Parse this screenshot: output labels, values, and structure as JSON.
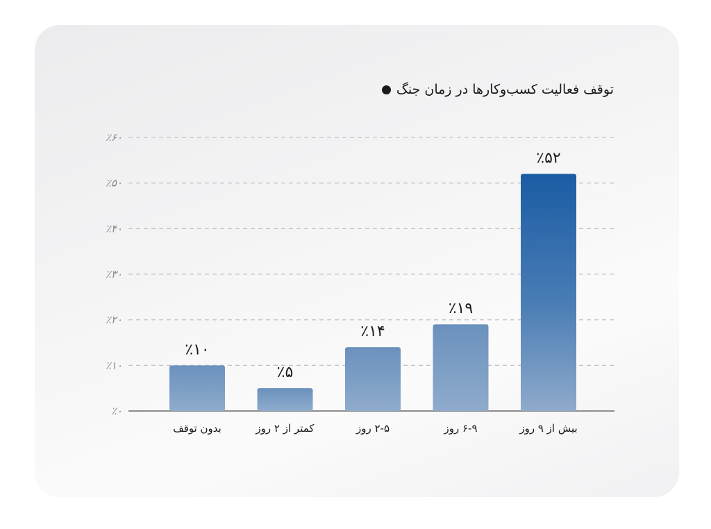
{
  "chart_data": {
    "type": "bar",
    "title": "توقف فعالیت کسب‌وکارها در زمان جنگ",
    "categories": [
      "بدون توقف",
      "کمتر از ۲ روز",
      "۲-۵ روز",
      "۶-۹ روز",
      "بیش از ۹ روز"
    ],
    "values": [
      10,
      5,
      14,
      19,
      52
    ],
    "value_labels": [
      "٪۱۰",
      "٪۵",
      "٪۱۴",
      "٪۱۹",
      "٪۵۲"
    ],
    "ylim": [
      0,
      60
    ],
    "yticks": [
      0,
      10,
      20,
      30,
      40,
      50,
      60
    ],
    "ytick_labels": [
      "٪۰",
      "٪۱۰",
      "٪۲۰",
      "٪۳۰",
      "٪۴۰",
      "٪۵۰",
      "٪۶۰"
    ],
    "grid": true,
    "highlight_index": 4,
    "colors": {
      "bar": "#6f95c0",
      "bar_light": "#8fabcc",
      "highlight": "#1d5fa6",
      "highlight_light": "#8faacb",
      "grid": "#c4c4c4",
      "axis": "#8d8d8d"
    }
  }
}
